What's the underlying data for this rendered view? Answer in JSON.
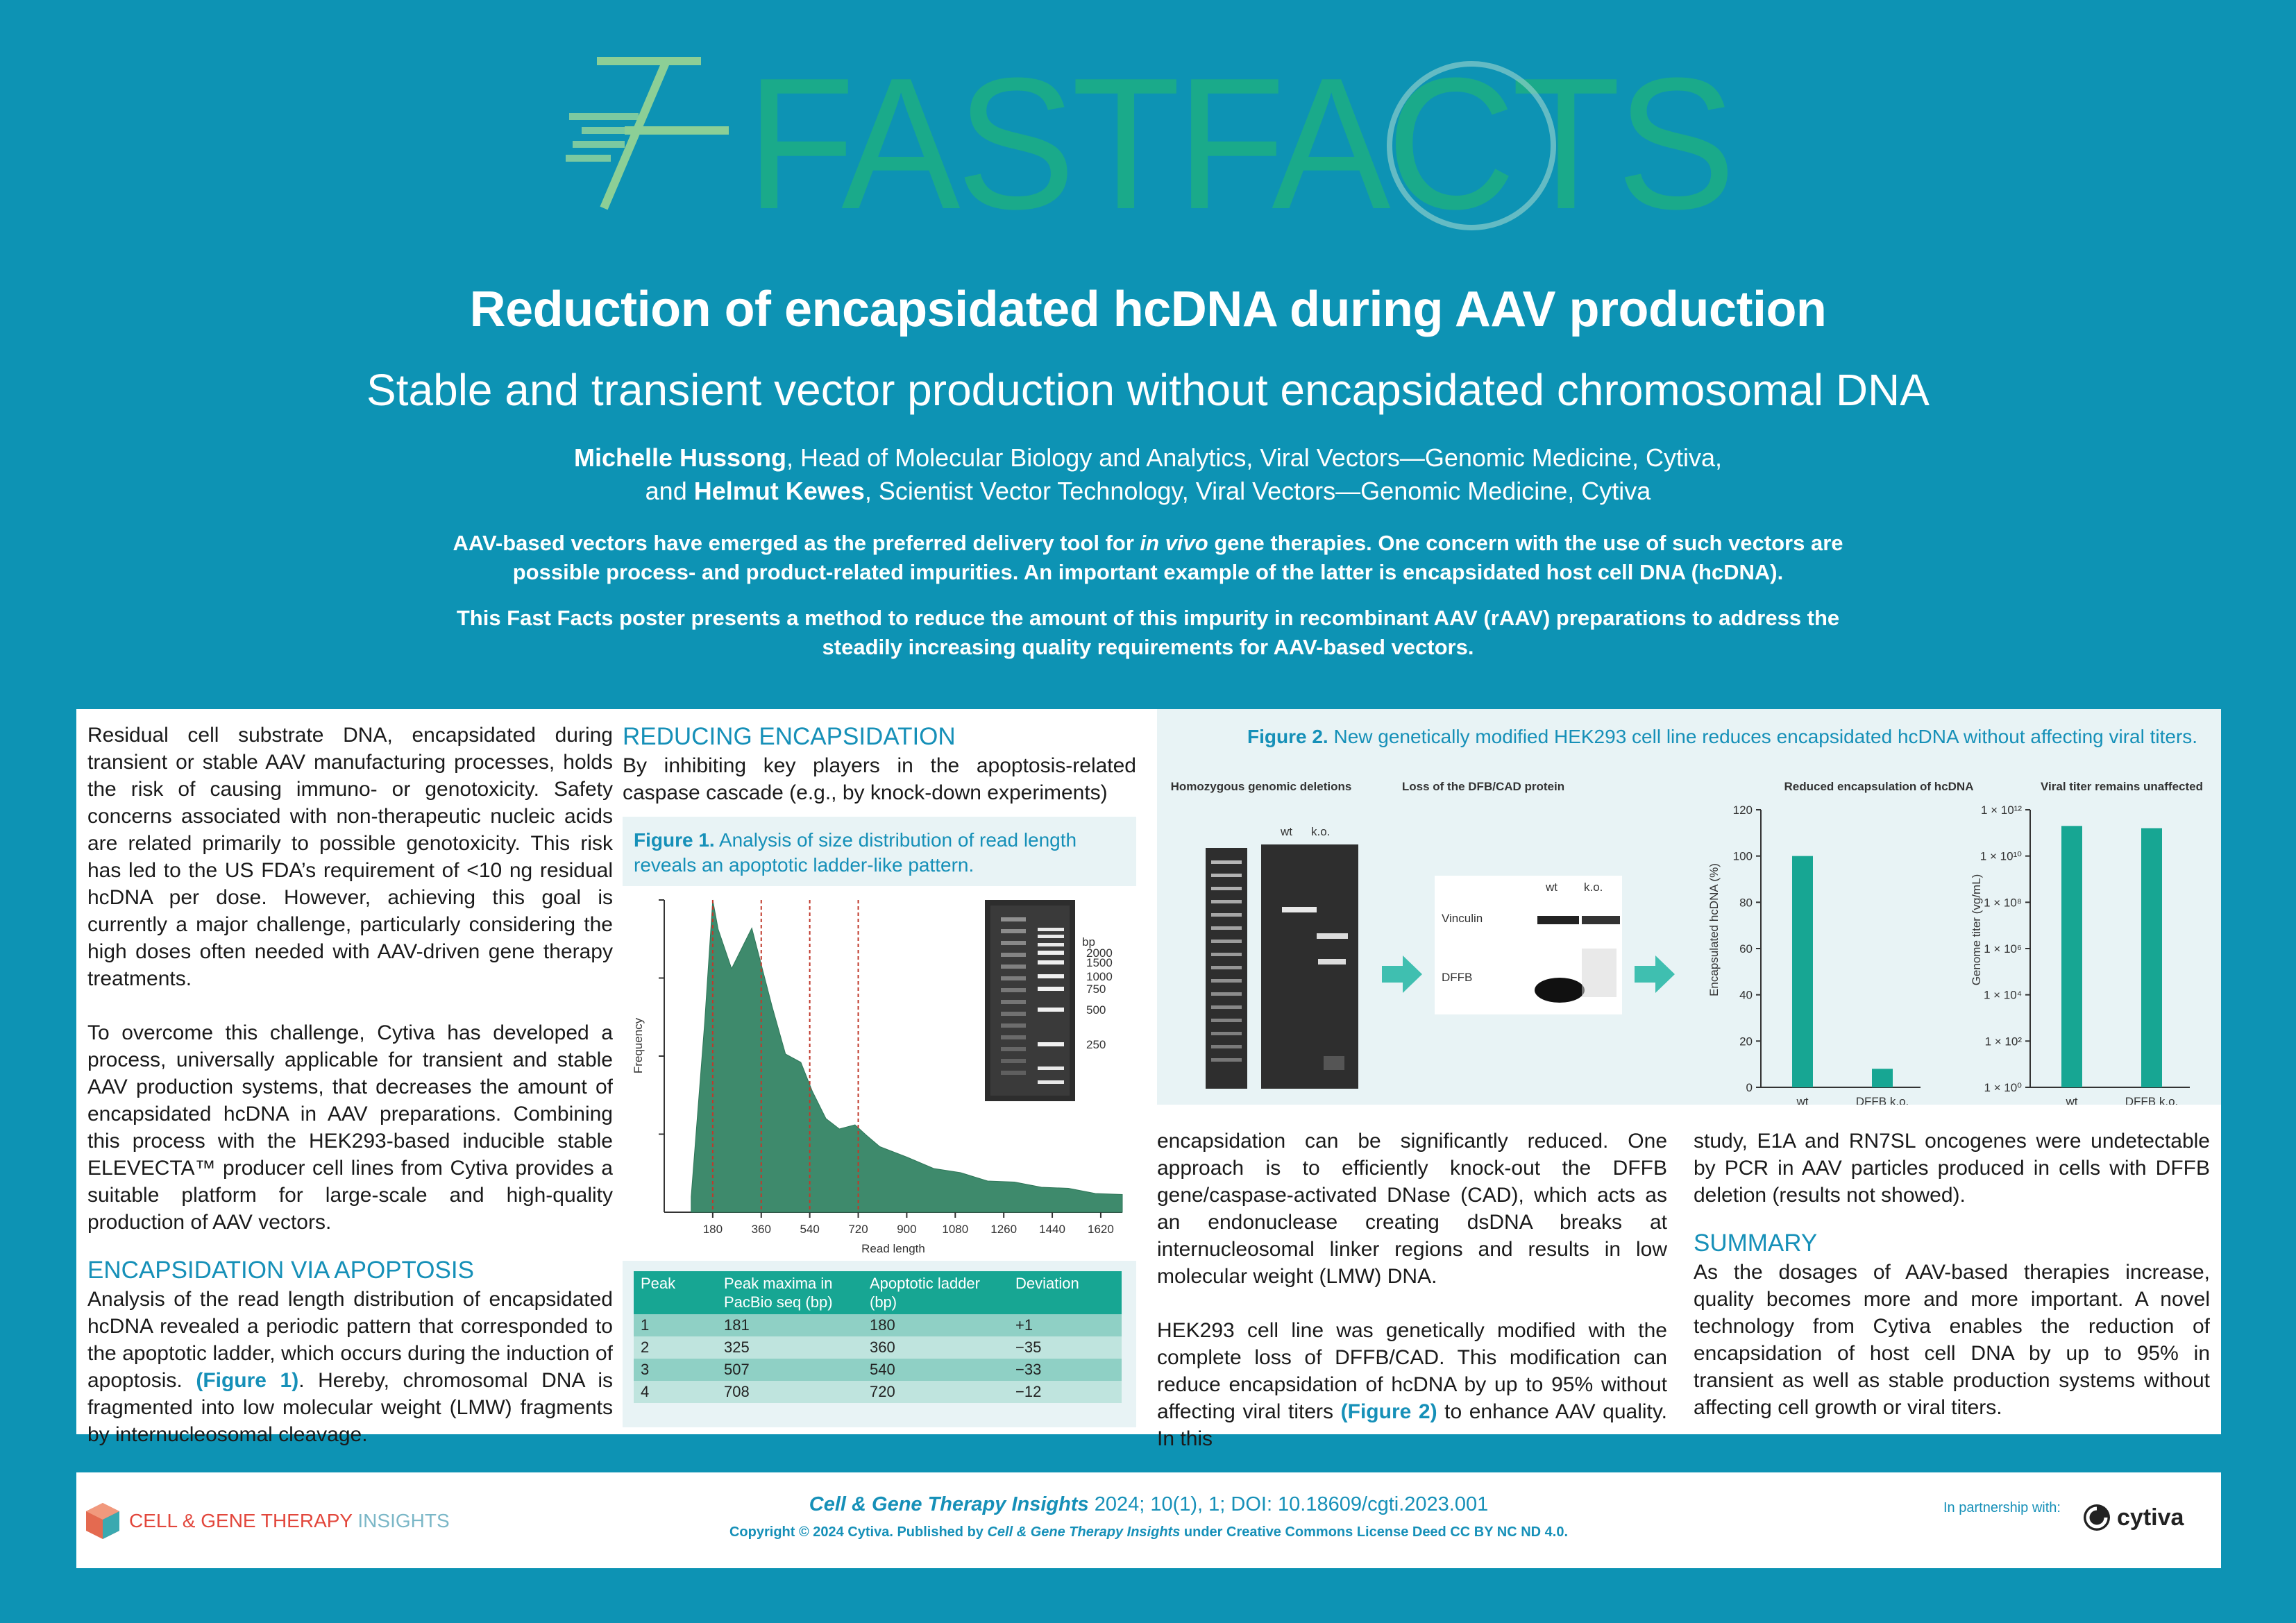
{
  "header": {
    "logo_text": "FASTFACTS",
    "title": "Reduction of encapsidated hcDNA during AAV production",
    "subtitle": "Stable and transient vector production without encapsidated chromosomal DNA",
    "author1_name": "Michelle Hussong",
    "author1_role": ", Head of Molecular Biology and Analytics, Viral Vectors—Genomic Medicine, Cytiva,",
    "author2_prefix": "and ",
    "author2_name": "Helmut Kewes",
    "author2_role": ", Scientist Vector Technology, Viral Vectors—Genomic Medicine, Cytiva",
    "intro1_a": "AAV-based vectors have emerged as the preferred delivery tool for ",
    "intro1_em": "in vivo",
    "intro1_b": " gene therapies. One concern with the use of such vectors are possible process- and product-related impurities. An important example of the latter is encapsidated host cell DNA (hcDNA).",
    "intro2": "This Fast Facts poster presents a method to reduce the amount of this impurity in recombinant AAV (rAAV) preparations to address the steadily increasing quality requirements for AAV-based vectors."
  },
  "col1": {
    "p1": "Residual cell substrate DNA, encapsidated during transient or stable AAV manufacturing processes, holds the risk of causing immuno- or genotoxicity. Safety concerns associated with non-therapeutic nucleic acids are related primarily to possible genotoxicity. This risk has led to the US FDA’s requirement of <10 ng residual hcDNA per dose. However, achieving this goal is currently a major challenge, particularly considering the high doses often needed with AAV-driven gene therapy treatments.",
    "p2": "To overcome this challenge, Cytiva has developed a process, universally applicable for transient and stable AAV production systems, that decreases the amount of encapsidated hcDNA in AAV preparations. Combining this process with the HEK293-based inducible stable ELEVECTA™ producer cell lines from Cytiva provides a suitable platform for large-scale and high-quality production of AAV vectors.",
    "h1": "ENCAPSIDATION VIA APOPTOSIS",
    "p3_a": "Analysis of the read length distribution of encapsidated hcDNA revealed a periodic pattern that corresponded to the apoptotic ladder, which occurs during the induction of apoptosis. ",
    "p3_link": "(Figure 1)",
    "p3_b": ". Hereby, chromosomal DNA is fragmented into low molecular weight (LMW) fragments by internucleosomal cleavage."
  },
  "col2": {
    "h1": "REDUCING ENCAPSIDATION",
    "p1": "By inhibiting key players in the apoptosis-related caspase cascade (e.g., by knock-down experiments)",
    "fig1_label": "Figure 1.",
    "fig1_caption": " Analysis of size distribution of read length reveals an apoptotic ladder-like pattern.",
    "table_headers": [
      "Peak",
      "Peak maxima in PacBio seq (bp)",
      "Apoptotic ladder (bp)",
      "Deviation"
    ],
    "table_rows": [
      [
        "1",
        "181",
        "180",
        "+1"
      ],
      [
        "2",
        "325",
        "360",
        "−35"
      ],
      [
        "3",
        "507",
        "540",
        "−33"
      ],
      [
        "4",
        "708",
        "720",
        "−12"
      ]
    ]
  },
  "fig2": {
    "label": "Figure 2.",
    "caption": " New genetically modified HEK293 cell line reduces encapsidated hcDNA without affecting viral titers.",
    "panel1_title": "Homozygous genomic deletions",
    "panel2_title": "Loss of the DFB/CAD protein",
    "panel3_title": "Reduced encapsulation of hcDNA",
    "panel4_title": "Viral titer remains unaffected",
    "gel_wt": "wt",
    "gel_ko": "k.o.",
    "wb_wt": "wt",
    "wb_ko": "k.o.",
    "wb_vinculin": "Vinculin",
    "wb_dffb": "DFFB"
  },
  "col3": {
    "p1": "encapsidation can be significantly reduced. One approach is to efficiently knock-out the DFFB gene/caspase-activated DNase (CAD), which acts as an endonuclease creating dsDNA breaks at internucleosomal linker regions and results in low molecular weight (LMW) DNA.",
    "p2_a": "HEK293 cell line was genetically modified with the complete loss of DFFB/CAD. This modification can reduce encapsidation of hcDNA by up to 95% without affecting viral titers ",
    "p2_link": "(Figure 2)",
    "p2_b": " to enhance AAV quality. In this"
  },
  "col4": {
    "p1": "study, E1A and RN7SL oncogenes were undetectable by PCR in AAV particles produced in cells with DFFB deletion (results not showed).",
    "h1": "SUMMARY",
    "p2": "As the dosages of AAV-based therapies increase, quality becomes more and more important. A novel technology from Cytiva enables the reduction of encapsidation of host cell DNA by up to 95% in transient as well as stable production systems without affecting cell growth or viral titers."
  },
  "footer": {
    "journal_logo_a": "CELL & GENE THERAPY",
    "journal_logo_b": " INSIGHTS",
    "cite_journal": "Cell & Gene Therapy Insights",
    "cite_rest": " 2024; 10(1), 1; DOI: 10.18609/cgti.2023.001",
    "copy_a": "Copyright © 2024 Cytiva. Published by ",
    "copy_journal": "Cell & Gene Therapy Insights",
    "copy_b": " under Creative Commons License Deed CC BY NC ND 4.0.",
    "partner": "In partnership with:",
    "partner_brand": "cytiva"
  },
  "chart_data": [
    {
      "type": "area",
      "title": "",
      "xlabel": "Read length",
      "ylabel": "Frequency",
      "x_ticks": [
        180,
        360,
        540,
        720,
        900,
        1080,
        1260,
        1440,
        1620
      ],
      "xlim": [
        0,
        1700
      ],
      "marker_lines": [
        180,
        360,
        540,
        720
      ],
      "x": [
        100,
        150,
        180,
        200,
        250,
        300,
        325,
        350,
        400,
        450,
        507,
        550,
        600,
        650,
        708,
        750,
        800,
        900,
        1000,
        1100,
        1200,
        1300,
        1400,
        1500,
        1600,
        1700
      ],
      "y": [
        5,
        60,
        100,
        90,
        78,
        86,
        91,
        82,
        66,
        50,
        48,
        38,
        30,
        26,
        28,
        24,
        21,
        17,
        14,
        12,
        10,
        9,
        8,
        7,
        6,
        5
      ],
      "inset_gel_ladder_bp": [
        2000,
        1500,
        1000,
        750,
        500,
        250
      ],
      "inset_gel_unit": "bp"
    },
    {
      "type": "bar",
      "title": "Reduced encapsulation of hcDNA",
      "categories": [
        "wt",
        "DFFB k.o."
      ],
      "values": [
        100,
        8
      ],
      "ylabel": "Encapsulated hcDNA (%)",
      "ylim": [
        0,
        120
      ],
      "y_ticks": [
        0,
        20,
        40,
        60,
        80,
        100,
        120
      ],
      "color": "#17a693"
    },
    {
      "type": "bar",
      "title": "Viral titer remains unaffected",
      "categories": [
        "wt",
        "DFFB k.o."
      ],
      "values": [
        200000000000.0,
        160000000000.0
      ],
      "ylabel": "Genome titer (vg/mL)",
      "scale": "log",
      "ylim": [
        1,
        1000000000000.0
      ],
      "y_ticks": [
        "1 × 10⁰",
        "1 × 10²",
        "1 × 10⁴",
        "1 × 10⁶",
        "1 × 10⁸",
        "1 × 10¹⁰",
        "1 × 10¹²"
      ],
      "color": "#17a693"
    }
  ]
}
